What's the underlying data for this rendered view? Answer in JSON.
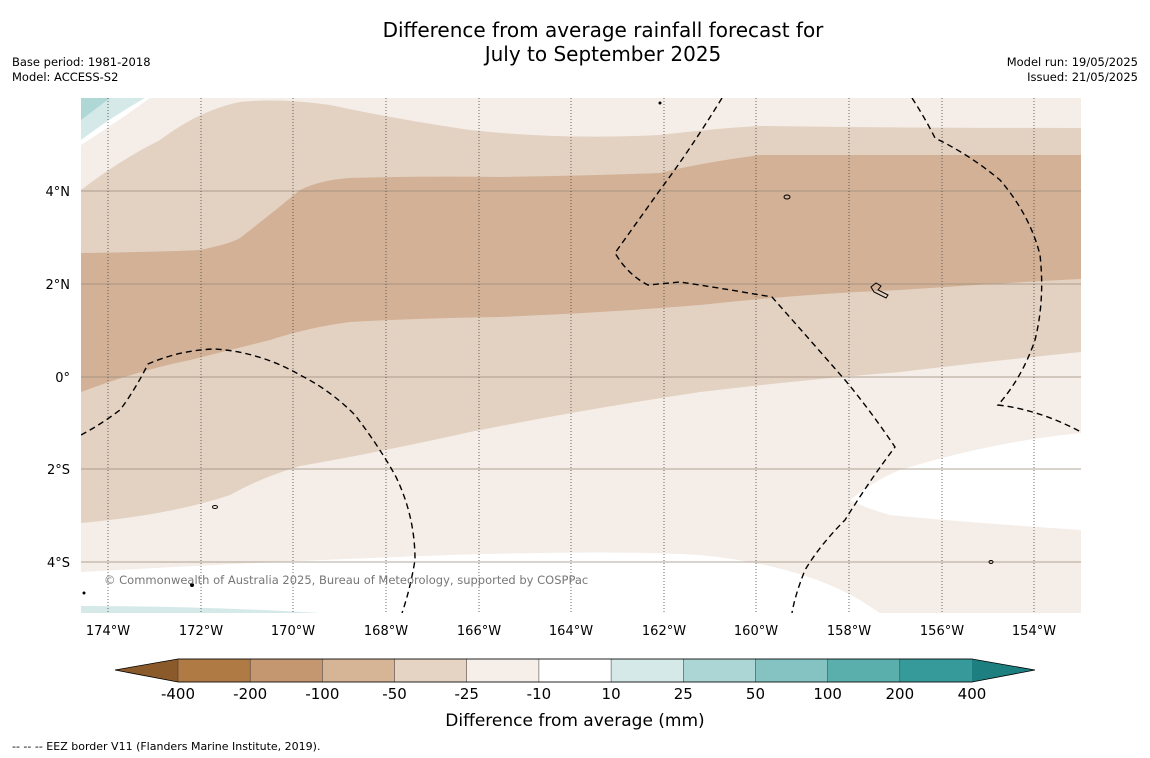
{
  "title": {
    "line1": "Difference from average rainfall forecast for",
    "line2": "July to September 2025"
  },
  "meta": {
    "base_period": "Base period: 1981-2018",
    "model": "Model: ACCESS-S2",
    "model_run": "Model run: 19/05/2025",
    "issued": "Issued: 21/05/2025"
  },
  "map": {
    "lat_labels": [
      "4°N",
      "2°N",
      "0°",
      "2°S",
      "4°S"
    ],
    "lon_labels": [
      "174°W",
      "172°W",
      "170°W",
      "168°W",
      "166°W",
      "164°W",
      "162°W",
      "160°W",
      "158°W",
      "156°W",
      "154°W"
    ],
    "copyright": "© Commonwealth of Australia 2025, Bureau of Meteorology, supported by COSPPac",
    "category_colors": {
      "-100_to_-50": "#d2b196",
      "-50_to_-25": "#e3d1c1",
      "-25_to_-10": "#f4ede8",
      "-10_to_10": "#ffffff",
      "10_to_25": "#d4e9e8",
      "25_to_50": "#aed7d6"
    }
  },
  "colorbar": {
    "title": "Difference from average (mm)",
    "ticks": [
      "-400",
      "-200",
      "-100",
      "-50",
      "-25",
      "-10",
      "10",
      "25",
      "50",
      "100",
      "200",
      "400"
    ],
    "colors": [
      "#8a5a2b",
      "#b07a45",
      "#c59770",
      "#d6b496",
      "#e5d3c3",
      "#f5eee9",
      "#ffffff",
      "#d4e9e8",
      "#acd6d5",
      "#84c3c1",
      "#5aaeab",
      "#36999a",
      "#1e7f80"
    ]
  },
  "footnote": "--  --  -- EEZ border V11 (Flanders Marine Institute, 2019)."
}
